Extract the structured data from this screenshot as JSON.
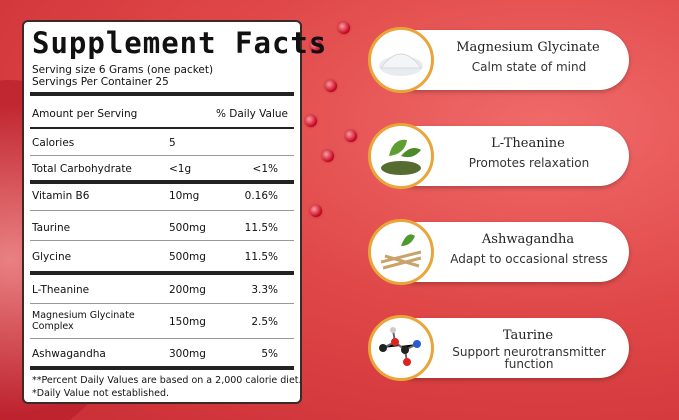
{
  "supplement_facts": {
    "title": "Supplement Facts",
    "serving_size": "Serving size 6 Grams (one packet)",
    "servings_per_container": "Servings Per Container 25",
    "header": {
      "amount": "Amount per Serving",
      "daily_value": "% Daily Value"
    },
    "rows": [
      {
        "name": "Calories",
        "amount": "5"
      },
      {
        "name": "Total Carbohydrate",
        "amount": "<1g",
        "dv": "<1%"
      },
      {
        "name": "Vitamin B6",
        "amount": "10mg",
        "dv": "0.16%"
      },
      {
        "name": "Taurine",
        "amount": "500mg",
        "dv": "11.5%"
      },
      {
        "name": "Glycine",
        "amount": "500mg",
        "dv": "11.5%"
      },
      {
        "name": "L-Theanine",
        "amount": "200mg",
        "dv": "3.3%"
      },
      {
        "name": "Magnesium Glycinate Complex",
        "amount": "150mg",
        "dv": "2.5%"
      },
      {
        "name": "Ashwagandha",
        "amount": "300mg",
        "dv": "5%"
      }
    ],
    "footnotes": [
      "**Percent Daily Values are based on a 2,000 calorie diet.",
      "*Daily Value not established."
    ]
  },
  "ingredients": [
    {
      "name": "Magnesium Glycinate",
      "description": "Calm state of mind"
    },
    {
      "name": "L-Theanine",
      "description": "Promotes relaxation"
    },
    {
      "name": "Ashwagandha",
      "description": "Adapt to occasional stress"
    },
    {
      "name": "Taurine",
      "description": "Support neurotransmitter function"
    }
  ]
}
